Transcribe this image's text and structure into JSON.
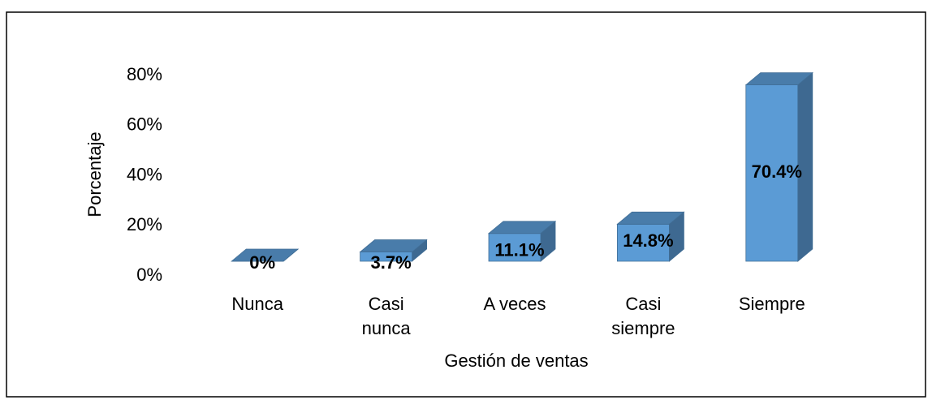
{
  "chart_data": {
    "type": "bar3d",
    "x_label": "Gestión de ventas",
    "y_label": "Porcentaje",
    "categories": [
      "Nunca",
      "Casi nunca",
      "A veces",
      "Casi siempre",
      "Siempre"
    ],
    "values": [
      0,
      3.7,
      11.1,
      14.8,
      70.4
    ],
    "value_labels": [
      "0%",
      "3.7%",
      "11.1%",
      "14.8%",
      "70.4%"
    ],
    "color": "#5b9bd5",
    "ylim": [
      0,
      80
    ],
    "yticks": [
      {
        "value": 0,
        "label": "0%"
      },
      {
        "value": 20,
        "label": "20%"
      },
      {
        "value": 40,
        "label": "40%"
      },
      {
        "value": 60,
        "label": "60%"
      },
      {
        "value": 80,
        "label": "80%"
      }
    ]
  }
}
